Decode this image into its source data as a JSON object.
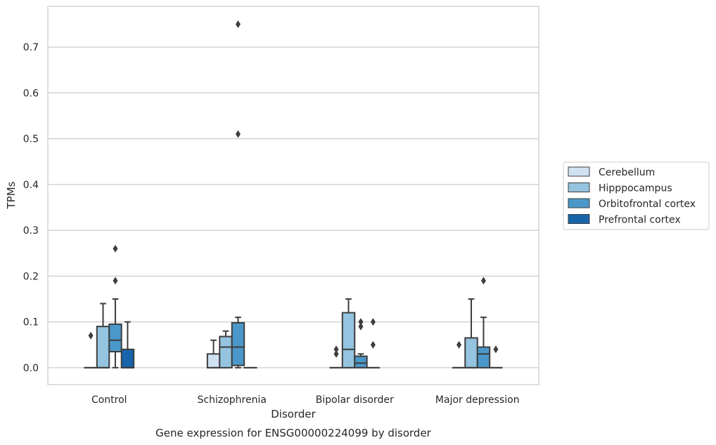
{
  "chart_data": {
    "type": "box",
    "xlabel": "Disorder",
    "ylabel": "TPMs",
    "caption": "Gene expression for ENSG00000224099 by disorder",
    "ylim": [
      -0.037,
      0.789
    ],
    "yticks": [
      "0.0",
      "0.1",
      "0.2",
      "0.3",
      "0.4",
      "0.5",
      "0.6",
      "0.7"
    ],
    "grid": "horizontal",
    "legend_position": "right",
    "categories": [
      "Control",
      "Schizophrenia",
      "Bipolar disorder",
      "Major depression"
    ],
    "series": [
      {
        "name": "Cerebellum",
        "color": "#d0e1f2",
        "boxes": [
          {
            "q1": 0,
            "median": 0,
            "q3": 0,
            "whisker_low": 0,
            "whisker_high": 0,
            "outliers": [
              0.07
            ]
          },
          {
            "q1": 0,
            "median": 0,
            "q3": 0.03,
            "whisker_low": 0,
            "whisker_high": 0.06,
            "outliers": []
          },
          {
            "q1": 0,
            "median": 0,
            "q3": 0,
            "whisker_low": 0,
            "whisker_high": 0,
            "outliers": [
              0.03,
              0.04
            ]
          },
          {
            "q1": 0,
            "median": 0,
            "q3": 0,
            "whisker_low": 0,
            "whisker_high": 0,
            "outliers": [
              0.05
            ]
          }
        ]
      },
      {
        "name": "Hipppocampus",
        "color": "#94c4df",
        "boxes": [
          {
            "q1": 0,
            "median": 0,
            "q3": 0.09,
            "whisker_low": 0,
            "whisker_high": 0.14,
            "outliers": []
          },
          {
            "q1": 0,
            "median": 0.045,
            "q3": 0.068,
            "whisker_low": 0,
            "whisker_high": 0.08,
            "outliers": []
          },
          {
            "q1": 0,
            "median": 0.04,
            "q3": 0.12,
            "whisker_low": 0,
            "whisker_high": 0.15,
            "outliers": []
          },
          {
            "q1": 0,
            "median": 0,
            "q3": 0.065,
            "whisker_low": 0,
            "whisker_high": 0.15,
            "outliers": []
          }
        ]
      },
      {
        "name": "Orbitofrontal cortex",
        "color": "#4a98c9",
        "boxes": [
          {
            "q1": 0.035,
            "median": 0.06,
            "q3": 0.095,
            "whisker_low": 0,
            "whisker_high": 0.15,
            "outliers": [
              0.19,
              0.26
            ]
          },
          {
            "q1": 0.005,
            "median": 0.045,
            "q3": 0.098,
            "whisker_low": 0,
            "whisker_high": 0.11,
            "outliers": [
              0.51,
              0.75
            ]
          },
          {
            "q1": 0,
            "median": 0.01,
            "q3": 0.025,
            "whisker_low": 0,
            "whisker_high": 0.03,
            "outliers": [
              0.09,
              0.1
            ]
          },
          {
            "q1": 0,
            "median": 0.03,
            "q3": 0.045,
            "whisker_low": 0,
            "whisker_high": 0.11,
            "outliers": [
              0.19
            ]
          }
        ]
      },
      {
        "name": "Prefrontal cortex",
        "color": "#1764ab",
        "boxes": [
          {
            "q1": 0,
            "median": 0,
            "q3": 0.04,
            "whisker_low": 0,
            "whisker_high": 0.1,
            "outliers": []
          },
          {
            "q1": 0,
            "median": 0,
            "q3": 0,
            "whisker_low": 0,
            "whisker_high": 0,
            "outliers": []
          },
          {
            "q1": 0,
            "median": 0,
            "q3": 0,
            "whisker_low": 0,
            "whisker_high": 0,
            "outliers": [
              0.05,
              0.1
            ]
          },
          {
            "q1": 0,
            "median": 0,
            "q3": 0,
            "whisker_low": 0,
            "whisker_high": 0,
            "outliers": [
              0.04
            ]
          }
        ]
      }
    ]
  }
}
